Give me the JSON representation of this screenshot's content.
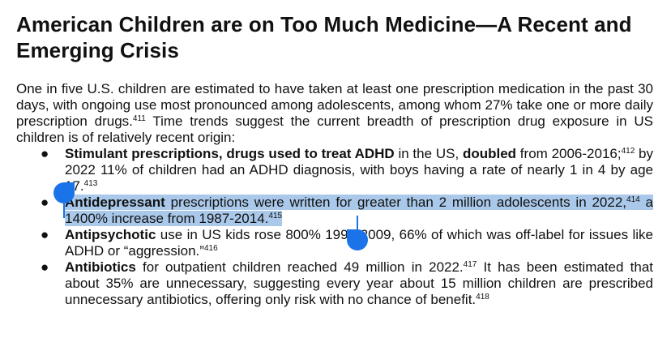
{
  "document": {
    "title": "American Children are on Too Much Medicine—A Recent and Emerging Crisis",
    "intro": {
      "text": "One in five U.S. children are estimated to have taken at least one prescription medication in the past 30 days, with ongoing use most pronounced among adolescents, among whom 27% take one or more daily prescription drugs.",
      "sup1": "411",
      "text2": " Time trends suggest the current breadth of prescription drug exposure in US children is of relatively recent origin:"
    },
    "bullets": [
      {
        "bold": "Stimulant prescriptions, drugs used to treat ADHD",
        "t1": " in the US, ",
        "bold2": "doubled",
        "t2": " from 2006-2016;",
        "sup1": "412",
        "t3": " by 2022 11% of children had an ADHD diagnosis, with boys having a rate of nearly 1 in 4 by age 17.",
        "sup2": "413"
      },
      {
        "bold": "Antidepressant",
        "t1": " prescriptions were written for greater than 2 million adolescents in 2022,",
        "sup1": "414",
        "t2": " a 1400% increase from 1987-2014.",
        "sup2": "415"
      },
      {
        "bold": "Antipsychotic",
        "t1": " use in US kids rose 800% 1995-2009, 66% of which was off-label for issues like ADHD or “aggression.”",
        "sup1": "416"
      },
      {
        "bold": "Antibiotics",
        "t1": " for outpatient children reached 49 million in 2022.",
        "sup1": "417",
        "t2": " It has been estimated that about 35% are unnecessary, suggesting every year about 15 million children are prescribed unnecessary antibiotics, offering only risk with no chance of benefit.",
        "sup2": "418"
      }
    ],
    "bullet_glyph": "●"
  },
  "selection": {
    "color": "#aac9ea",
    "handle_color": "#1a73e8"
  }
}
